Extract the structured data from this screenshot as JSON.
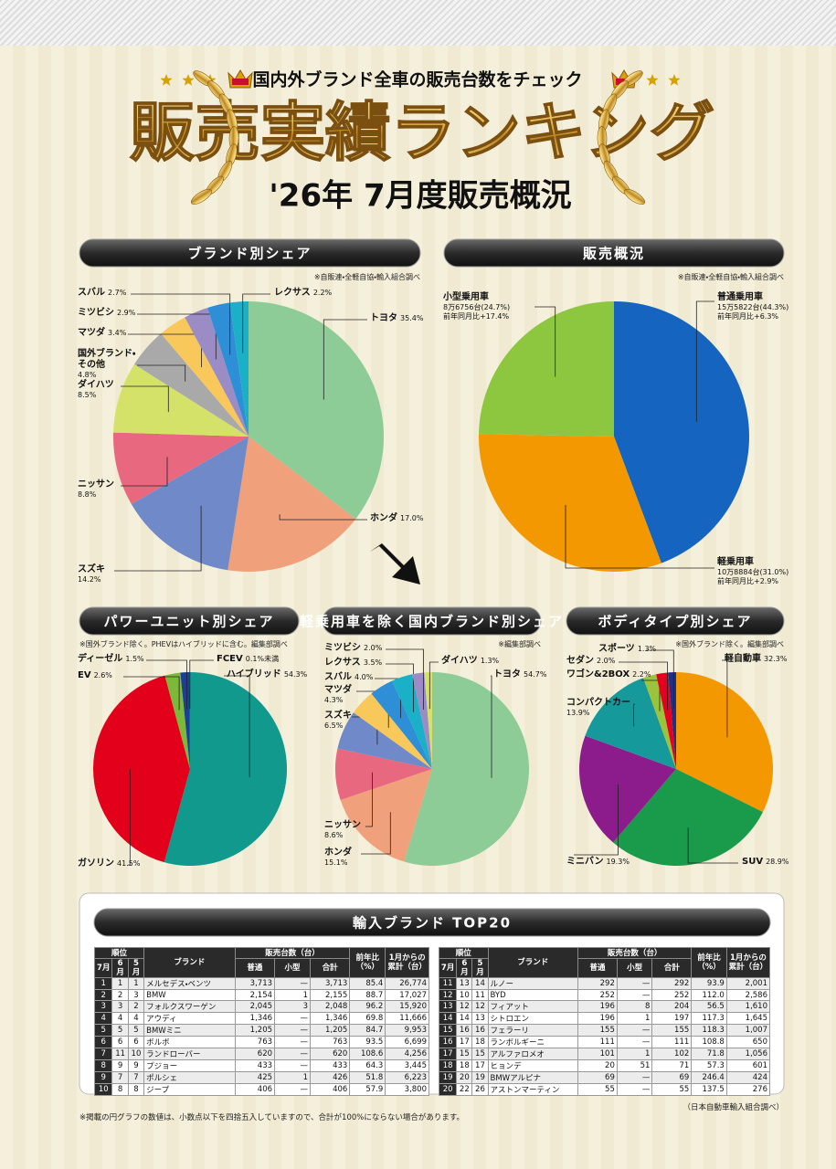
{
  "header": {
    "kicker": "国内外ブランド全車の販売台数をチェック",
    "title": "販売実績ランキング",
    "subtitle": "'26年 7月度販売概況"
  },
  "chart_data": [
    {
      "type": "pie",
      "title": "ブランド別シェア",
      "note": "※自販連・全軽自協・輸入組合調べ",
      "categories": [
        "トヨタ",
        "ホンダ",
        "スズキ",
        "ニッサン",
        "ダイハツ",
        "国外ブランド・その他",
        "マツダ",
        "ミツビシ",
        "スバル",
        "レクサス"
      ],
      "values": [
        35.4,
        17.0,
        14.2,
        8.8,
        8.5,
        4.8,
        3.4,
        2.9,
        2.7,
        2.2
      ],
      "value_labels": [
        "35.4%",
        "17.0%",
        "14.2%",
        "8.8%",
        "8.5%",
        "4.8%",
        "3.4%",
        "2.9%",
        "2.7%",
        "2.2%"
      ],
      "colors": [
        "#8dcc96",
        "#f0a07a",
        "#7089c8",
        "#e8697f",
        "#d4e26a",
        "#a9a9a9",
        "#f8c85a",
        "#9b8cc6",
        "#2f8fd6",
        "#1ab0c8"
      ]
    },
    {
      "type": "pie",
      "title": "販売概況",
      "note": "※自販連・全軽自協・輸入組合調べ",
      "categories": [
        "普通乗用車",
        "軽乗用車",
        "小型乗用車"
      ],
      "values": [
        44.3,
        31.0,
        24.7
      ],
      "value_labels": [
        "15万5822台(44.3%)",
        "10万8884台(31.0%)",
        "8万6756台(24.7%)"
      ],
      "yoy_labels": [
        "前年同月比+6.3%",
        "前年同月比+2.9%",
        "前年同月比+17.4%"
      ],
      "colors": [
        "#1565c0",
        "#f39800",
        "#8dc63f"
      ]
    },
    {
      "type": "pie",
      "title": "パワーユニット別シェア",
      "note": "※国外ブランド除く。PHEVはハイブリッドに含む。編集部調べ",
      "categories": [
        "ハイブリッド",
        "ガソリン",
        "EV",
        "ディーゼル",
        "FCEV"
      ],
      "values": [
        54.3,
        41.5,
        2.6,
        1.5,
        0.1
      ],
      "value_labels": [
        "54.3%",
        "41.5%",
        "2.6%",
        "1.5%",
        "0.1%未満"
      ],
      "colors": [
        "#12998e",
        "#e2001a",
        "#7cb83a",
        "#1b3f94",
        "#6a2c8a"
      ]
    },
    {
      "type": "pie",
      "title": "軽乗用車を除く国内ブランド別シェア",
      "note": "※編集部調べ",
      "categories": [
        "トヨタ",
        "ホンダ",
        "ニッサン",
        "スズキ",
        "マツダ",
        "スバル",
        "レクサス",
        "ミツビシ",
        "ダイハツ"
      ],
      "values": [
        54.7,
        15.1,
        8.6,
        6.5,
        4.3,
        4.0,
        3.5,
        2.0,
        1.3
      ],
      "value_labels": [
        "54.7%",
        "15.1%",
        "8.6%",
        "6.5%",
        "4.3%",
        "4.0%",
        "3.5%",
        "2.0%",
        "1.3%"
      ],
      "colors": [
        "#8dcc96",
        "#f0a07a",
        "#e8697f",
        "#7089c8",
        "#f8c85a",
        "#2f8fd6",
        "#1ab0c8",
        "#9b8cc6",
        "#d4e26a"
      ]
    },
    {
      "type": "pie",
      "title": "ボディタイプ別シェア",
      "note": "※国外ブランド除く。編集部調べ",
      "categories": [
        "軽自動車",
        "SUV",
        "ミニバン",
        "コンパクトカー",
        "ワゴン&2BOX",
        "セダン",
        "スポーツ"
      ],
      "values": [
        32.3,
        28.9,
        19.3,
        13.9,
        2.2,
        2.0,
        1.3
      ],
      "value_labels": [
        "32.3%",
        "28.9%",
        "19.3%",
        "13.9%",
        "2.2%",
        "2.0%",
        "1.3%"
      ],
      "colors": [
        "#f39800",
        "#1a9b4b",
        "#8c1c8c",
        "#16999a",
        "#9bc43c",
        "#e60020",
        "#1d2f87"
      ]
    }
  ],
  "table": {
    "title": "輸入ブランド TOP20",
    "header": {
      "rank": "順位",
      "months": [
        "7月",
        "6月",
        "5月"
      ],
      "brand": "ブランド",
      "sales": "販売台数（台）",
      "sales_sub": [
        "普通",
        "小型",
        "合計"
      ],
      "yoy": "前年比（%）",
      "cumulative": "1月からの累計（台）"
    },
    "rows": [
      [
        "1",
        "1",
        "1",
        "メルセデス・ベンツ",
        "3,713",
        "—",
        "3,713",
        "85.4",
        "26,774"
      ],
      [
        "2",
        "2",
        "3",
        "BMW",
        "2,154",
        "1",
        "2,155",
        "88.7",
        "17,027"
      ],
      [
        "3",
        "3",
        "2",
        "フォルクスワーゲン",
        "2,045",
        "3",
        "2,048",
        "96.2",
        "15,920"
      ],
      [
        "4",
        "4",
        "4",
        "アウディ",
        "1,346",
        "—",
        "1,346",
        "69.8",
        "11,666"
      ],
      [
        "5",
        "5",
        "5",
        "BMWミニ",
        "1,205",
        "—",
        "1,205",
        "84.7",
        "9,953"
      ],
      [
        "6",
        "6",
        "6",
        "ボルボ",
        "763",
        "—",
        "763",
        "93.5",
        "6,699"
      ],
      [
        "7",
        "11",
        "10",
        "ランドローバー",
        "620",
        "—",
        "620",
        "108.6",
        "4,256"
      ],
      [
        "8",
        "9",
        "9",
        "プジョー",
        "433",
        "—",
        "433",
        "64.3",
        "3,445"
      ],
      [
        "9",
        "7",
        "7",
        "ポルシェ",
        "425",
        "1",
        "426",
        "51.8",
        "6,223"
      ],
      [
        "10",
        "8",
        "8",
        "ジープ",
        "406",
        "—",
        "406",
        "57.9",
        "3,800"
      ],
      [
        "11",
        "13",
        "14",
        "ルノー",
        "292",
        "—",
        "292",
        "93.9",
        "2,001"
      ],
      [
        "12",
        "10",
        "11",
        "BYD",
        "252",
        "—",
        "252",
        "112.0",
        "2,586"
      ],
      [
        "13",
        "12",
        "12",
        "フィアット",
        "196",
        "8",
        "204",
        "56.5",
        "1,610"
      ],
      [
        "14",
        "14",
        "13",
        "シトロエン",
        "196",
        "1",
        "197",
        "117.3",
        "1,645"
      ],
      [
        "15",
        "16",
        "16",
        "フェラーリ",
        "155",
        "—",
        "155",
        "118.3",
        "1,007"
      ],
      [
        "16",
        "17",
        "18",
        "ランボルギーニ",
        "111",
        "—",
        "111",
        "108.8",
        "650"
      ],
      [
        "17",
        "15",
        "15",
        "アルファロメオ",
        "101",
        "1",
        "102",
        "71.8",
        "1,056"
      ],
      [
        "18",
        "18",
        "17",
        "ヒョンデ",
        "20",
        "51",
        "71",
        "57.3",
        "601"
      ],
      [
        "19",
        "20",
        "19",
        "BMWアルピナ",
        "69",
        "—",
        "69",
        "246.4",
        "424"
      ],
      [
        "20",
        "22",
        "26",
        "アストンマーティン",
        "55",
        "—",
        "55",
        "137.5",
        "276"
      ]
    ]
  },
  "footer": {
    "source": "（日本自動車輸入組合調べ）",
    "footnote": "※掲載の円グラフの数値は、小数点以下を四捨五入していますので、合計が100%にならない場合があります。"
  }
}
